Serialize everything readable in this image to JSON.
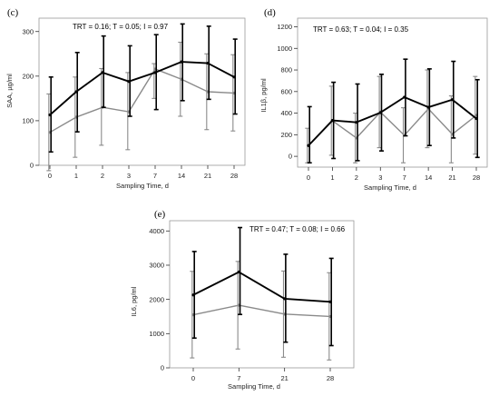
{
  "colors": {
    "trt": "#000000",
    "control": "#8a8a8a",
    "axis": "#333333",
    "plot_border": "#9a9a9a"
  },
  "chart_data": [
    {
      "type": "line",
      "panel": "(c)",
      "stats": "TRT = 0.16; T = 0.05; I = 0.97",
      "xlabel": "Sampling Time, d",
      "ylabel": "SAA, µg/ml",
      "categories": [
        "0",
        "1",
        "2",
        "3",
        "7",
        "14",
        "21",
        "28"
      ],
      "ylim": [
        0,
        330
      ],
      "yticks": [
        "0",
        "100",
        "200",
        "300"
      ],
      "series": [
        {
          "values": [
            113,
            165,
            208,
            188,
            208,
            232,
            229,
            198
          ],
          "err_low": [
            30,
            75,
            130,
            110,
            125,
            145,
            148,
            115
          ],
          "err_high": [
            198,
            253,
            290,
            268,
            293,
            317,
            312,
            283
          ]
        },
        {
          "values": [
            74,
            108,
            130,
            120,
            216,
            193,
            165,
            162
          ],
          "err_low": [
            -12,
            18,
            45,
            35,
            150,
            110,
            80,
            77
          ],
          "err_high": [
            160,
            198,
            217,
            208,
            228,
            276,
            250,
            248
          ]
        }
      ]
    },
    {
      "type": "line",
      "panel": "(d)",
      "stats": "TRT = 0.63; T = 0.04; I = 0.35",
      "xlabel": "Sampling Time, d",
      "ylabel": "IL1β, pg/ml",
      "categories": [
        "0",
        "1",
        "2",
        "3",
        "7",
        "14",
        "21",
        "28"
      ],
      "ylim": [
        -100,
        1280
      ],
      "yticks": [
        "0",
        "200",
        "400",
        "600",
        "800",
        "1000",
        "1200"
      ],
      "series": [
        {
          "values": [
            100,
            333,
            315,
            405,
            548,
            455,
            525,
            350
          ],
          "err_low": [
            -60,
            -20,
            -40,
            50,
            190,
            100,
            170,
            -10
          ],
          "err_high": [
            460,
            686,
            670,
            760,
            900,
            810,
            880,
            710
          ]
        },
        {
          "values": [
            100,
            330,
            170,
            410,
            195,
            440,
            205,
            380
          ],
          "err_low": [
            -60,
            10,
            -60,
            80,
            -60,
            80,
            -60,
            20
          ],
          "err_high": [
            260,
            650,
            400,
            740,
            450,
            800,
            560,
            740
          ]
        }
      ]
    },
    {
      "type": "line",
      "panel": "(e)",
      "stats": "TRT = 0.47; T = 0.08; I = 0.66",
      "xlabel": "Sampling Time, d",
      "ylabel": "IL6, pg/ml",
      "categories": [
        "0",
        "7",
        "21",
        "28"
      ],
      "ylim": [
        0,
        4300
      ],
      "yticks": [
        "0",
        "1000",
        "2000",
        "3000",
        "4000"
      ],
      "series": [
        {
          "values": [
            2130,
            2800,
            2020,
            1930
          ],
          "err_low": [
            870,
            1560,
            750,
            650
          ],
          "err_high": [
            3400,
            4100,
            3320,
            3200
          ]
        },
        {
          "values": [
            1550,
            1830,
            1570,
            1500
          ],
          "err_low": [
            290,
            550,
            310,
            230
          ],
          "err_high": [
            2820,
            3110,
            2830,
            2780
          ]
        }
      ]
    }
  ]
}
